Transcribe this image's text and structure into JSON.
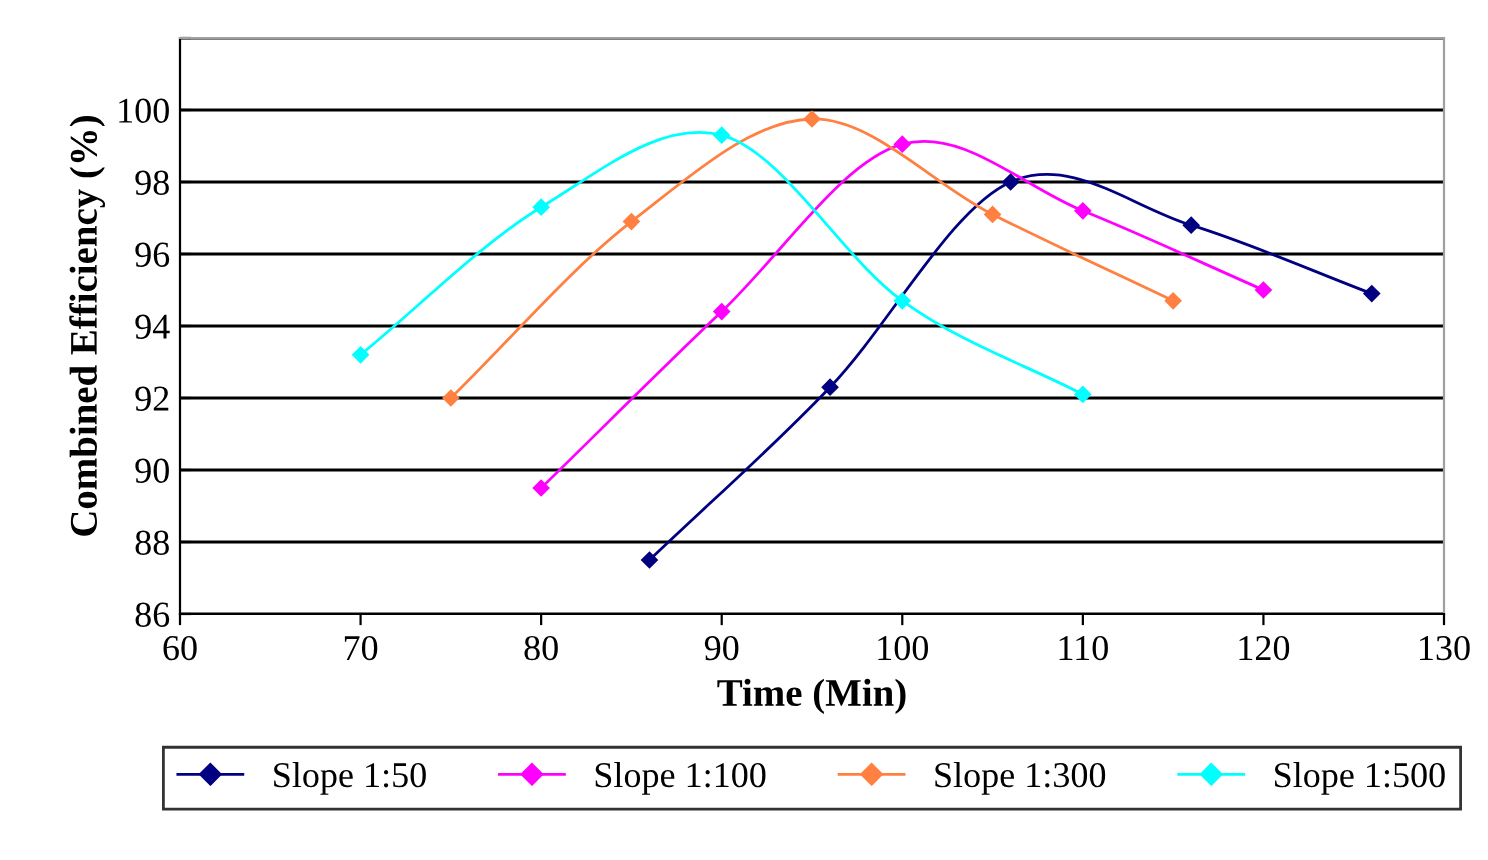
{
  "chart_data": {
    "type": "line",
    "xlabel": "Time (Min)",
    "ylabel": "Combined Efficiency (%)",
    "xlim": [
      60,
      130
    ],
    "xticks": [
      60,
      70,
      80,
      90,
      100,
      110,
      120,
      130
    ],
    "ylim": [
      86,
      102
    ],
    "yticks": [
      86,
      88,
      90,
      92,
      94,
      96,
      98,
      100,
      {
        "value": 102,
        "label": null
      }
    ],
    "grid": "y",
    "legend": "bottom",
    "marker": "diamond",
    "line_style": "solid",
    "series": [
      {
        "name": "Slope 1:50",
        "color": "#000080",
        "x": [
          86,
          96,
          106,
          116,
          126
        ],
        "values": [
          87.5,
          92.3,
          98.0,
          96.8,
          94.9
        ]
      },
      {
        "name": "Slope 1:100",
        "color": "#ff00ff",
        "x": [
          80,
          90,
          100,
          110,
          120
        ],
        "values": [
          89.5,
          94.4,
          99.05,
          97.2,
          95.0
        ]
      },
      {
        "name": "Slope 1:300",
        "color": "#ff8040",
        "x": [
          75,
          85,
          95,
          105,
          115
        ],
        "values": [
          92.0,
          96.9,
          99.75,
          97.1,
          94.7
        ]
      },
      {
        "name": "Slope 1:500",
        "color": "#00ffff",
        "x": [
          70,
          80,
          90,
          100,
          110
        ],
        "values": [
          93.2,
          97.3,
          99.3,
          94.7,
          92.1
        ]
      }
    ]
  }
}
